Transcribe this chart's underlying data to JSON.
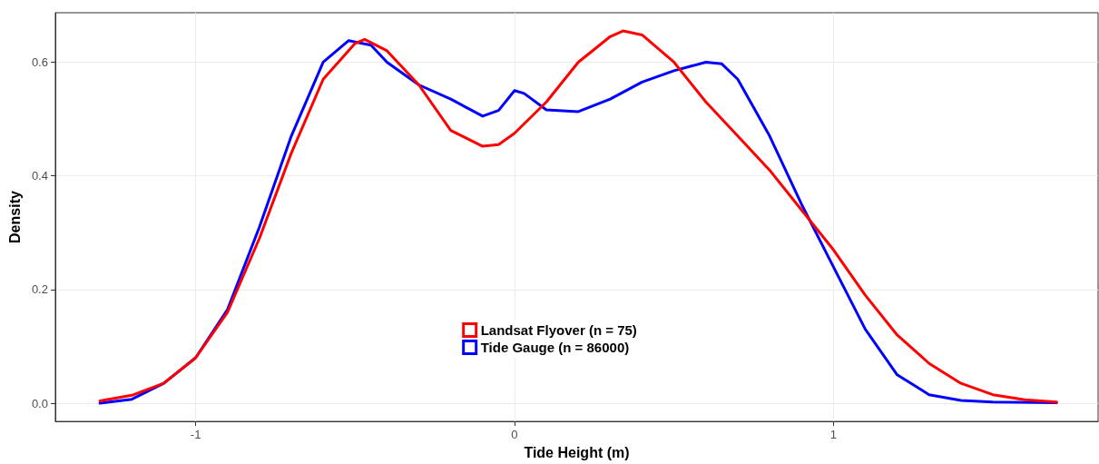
{
  "chart_data": {
    "type": "line",
    "xlabel": "Tide Height (m)",
    "ylabel": "Density",
    "xlim": [
      -1.44,
      1.83
    ],
    "ylim": [
      -0.032,
      0.687
    ],
    "xticks": [
      -1,
      0,
      1
    ],
    "yticks": [
      {
        "value": 0,
        "label": "0.0"
      },
      0.2,
      0.4,
      0.6
    ],
    "grid": true,
    "legend": "bottom",
    "line_style": "solid",
    "series": [
      {
        "name": "Landsat Flyover (n = 75)",
        "color": "#ff0000",
        "x": [
          -1.3,
          -1.2,
          -1.1,
          -1.0,
          -0.9,
          -0.8,
          -0.7,
          -0.6,
          -0.5,
          -0.47,
          -0.4,
          -0.3,
          -0.2,
          -0.1,
          -0.05,
          0,
          0.1,
          0.2,
          0.3,
          0.34,
          0.4,
          0.5,
          0.6,
          0.7,
          0.8,
          0.9,
          1.0,
          1.1,
          1.2,
          1.3,
          1.4,
          1.5,
          1.6,
          1.7
        ],
        "values": [
          0.004,
          0.014,
          0.035,
          0.08,
          0.16,
          0.29,
          0.44,
          0.57,
          0.633,
          0.64,
          0.62,
          0.56,
          0.48,
          0.452,
          0.455,
          0.475,
          0.53,
          0.6,
          0.645,
          0.655,
          0.648,
          0.6,
          0.53,
          0.47,
          0.41,
          0.34,
          0.27,
          0.19,
          0.12,
          0.07,
          0.035,
          0.015,
          0.006,
          0.002
        ]
      },
      {
        "name": "Tide Gauge (n = 86000)",
        "color": "#0000ff",
        "x": [
          -1.3,
          -1.2,
          -1.1,
          -1.0,
          -0.9,
          -0.8,
          -0.7,
          -0.6,
          -0.52,
          -0.45,
          -0.4,
          -0.3,
          -0.2,
          -0.1,
          -0.05,
          0,
          0.03,
          0.1,
          0.2,
          0.3,
          0.4,
          0.5,
          0.6,
          0.65,
          0.7,
          0.8,
          0.9,
          1.0,
          1.1,
          1.2,
          1.3,
          1.4,
          1.5,
          1.7
        ],
        "values": [
          0.0,
          0.007,
          0.035,
          0.08,
          0.165,
          0.31,
          0.47,
          0.6,
          0.638,
          0.63,
          0.6,
          0.56,
          0.535,
          0.505,
          0.515,
          0.55,
          0.545,
          0.516,
          0.513,
          0.535,
          0.565,
          0.585,
          0.6,
          0.597,
          0.57,
          0.47,
          0.35,
          0.24,
          0.13,
          0.05,
          0.015,
          0.005,
          0.002,
          0.001
        ]
      }
    ]
  }
}
